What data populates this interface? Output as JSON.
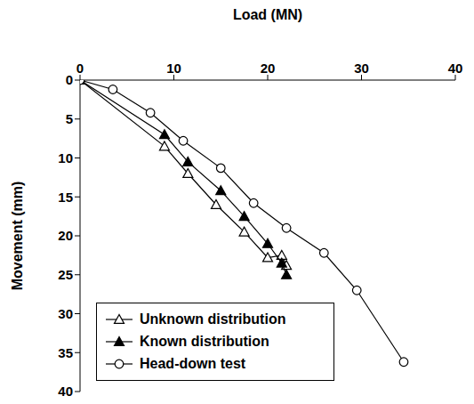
{
  "chart_data": {
    "type": "line",
    "x_label": "Load (MN)",
    "y_label": "Movement (mm)",
    "xlim": [
      0,
      40
    ],
    "xticks": [
      0,
      10,
      20,
      30,
      40
    ],
    "ylim": [
      0,
      40
    ],
    "yticks": [
      0,
      5,
      10,
      15,
      20,
      25,
      30,
      35,
      40
    ],
    "grid": false,
    "legend": "bottom-left",
    "series": [
      {
        "name": "Unknown distribution",
        "color": "#000000",
        "marker": "triangle-open",
        "x": [
          0,
          9,
          11.5,
          14.5,
          17.5,
          20,
          21.5,
          22
        ],
        "values": [
          0,
          8.5,
          12,
          16,
          19.5,
          22.8,
          22.5,
          23.8
        ]
      },
      {
        "name": "Known distribution",
        "color": "#000000",
        "marker": "triangle",
        "x": [
          0,
          9,
          11.5,
          15,
          17.5,
          20,
          21.5,
          22
        ],
        "values": [
          0,
          7,
          10.5,
          14.2,
          17.5,
          21,
          23.5,
          25
        ]
      },
      {
        "name": "Head-down test",
        "color": "#000000",
        "marker": "circle-open",
        "x": [
          0,
          3.5,
          7.5,
          11,
          15,
          18.5,
          22,
          26,
          29.5,
          34.5
        ],
        "values": [
          0,
          1.2,
          4.2,
          7.8,
          11.3,
          15.8,
          19,
          22.2,
          27,
          36.2
        ]
      }
    ]
  }
}
